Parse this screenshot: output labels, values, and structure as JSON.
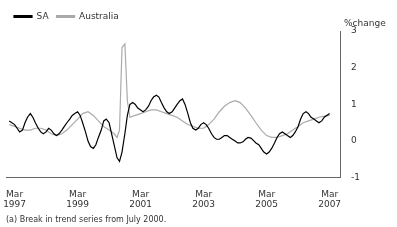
{
  "chart_data": {
    "type": "line",
    "ylabel": "%change",
    "footnote": "(a) Break in trend series from July 2000.",
    "legend": "upper left",
    "grid": false,
    "xlim": [
      1996.92,
      2007.5
    ],
    "xticks": [
      {
        "value": 1997.17,
        "label": "Mar\n1997"
      },
      {
        "value": 1999.17,
        "label": "Mar\n1999"
      },
      {
        "value": 2001.17,
        "label": "Mar\n2001"
      },
      {
        "value": 2003.17,
        "label": "Mar\n2003"
      },
      {
        "value": 2005.17,
        "label": "Mar\n2005"
      },
      {
        "value": 2007.17,
        "label": "Mar\n2007"
      }
    ],
    "ylim": [
      -1,
      3
    ],
    "yticks": [
      -1,
      0,
      1,
      2,
      3
    ],
    "background_color": "#ffffff",
    "series": [
      {
        "name": "SA",
        "color": "#000000",
        "x": [
          1997.0,
          1997.17,
          1997.25,
          1997.33,
          1997.42,
          1997.5,
          1997.58,
          1997.67,
          1997.75,
          1997.83,
          1997.92,
          1998.0,
          1998.08,
          1998.17,
          1998.25,
          1998.33,
          1998.42,
          1998.5,
          1998.58,
          1998.67,
          1998.75,
          1998.83,
          1998.92,
          1999.0,
          1999.08,
          1999.17,
          1999.25,
          1999.33,
          1999.42,
          1999.5,
          1999.58,
          1999.67,
          1999.75,
          1999.83,
          1999.92,
          2000.0,
          2000.08,
          2000.17,
          2000.25,
          2000.33,
          2000.42,
          2000.5,
          2000.58,
          2000.67,
          2000.75,
          2000.83,
          2000.92,
          2001.0,
          2001.08,
          2001.17,
          2001.25,
          2001.33,
          2001.42,
          2001.5,
          2001.58,
          2001.67,
          2001.75,
          2001.83,
          2001.92,
          2002.0,
          2002.08,
          2002.17,
          2002.25,
          2002.33,
          2002.42,
          2002.5,
          2002.58,
          2002.67,
          2002.75,
          2002.83,
          2002.92,
          2003.0,
          2003.08,
          2003.17,
          2003.25,
          2003.33,
          2003.42,
          2003.5,
          2003.58,
          2003.67,
          2003.75,
          2003.83,
          2003.92,
          2004.0,
          2004.08,
          2004.17,
          2004.25,
          2004.33,
          2004.42,
          2004.5,
          2004.58,
          2004.67,
          2004.75,
          2004.83,
          2004.92,
          2005.0,
          2005.08,
          2005.17,
          2005.25,
          2005.33,
          2005.42,
          2005.5,
          2005.58,
          2005.67,
          2005.75,
          2005.83,
          2005.92,
          2006.0,
          2006.08,
          2006.17,
          2006.25,
          2006.33,
          2006.42,
          2006.5,
          2006.58,
          2006.67,
          2006.75,
          2006.83,
          2006.92,
          2007.0,
          2007.17
        ],
        "values": [
          0.55,
          0.45,
          0.35,
          0.25,
          0.3,
          0.5,
          0.65,
          0.75,
          0.65,
          0.5,
          0.35,
          0.25,
          0.2,
          0.25,
          0.35,
          0.3,
          0.2,
          0.15,
          0.2,
          0.3,
          0.4,
          0.5,
          0.6,
          0.7,
          0.75,
          0.8,
          0.7,
          0.5,
          0.25,
          0.0,
          -0.15,
          -0.2,
          -0.1,
          0.1,
          0.3,
          0.55,
          0.6,
          0.5,
          0.2,
          -0.1,
          -0.45,
          -0.55,
          -0.3,
          0.2,
          0.7,
          1.0,
          1.05,
          1.0,
          0.9,
          0.85,
          0.8,
          0.85,
          0.95,
          1.1,
          1.2,
          1.25,
          1.2,
          1.05,
          0.9,
          0.8,
          0.75,
          0.8,
          0.9,
          1.0,
          1.1,
          1.15,
          1.0,
          0.75,
          0.5,
          0.35,
          0.3,
          0.35,
          0.45,
          0.5,
          0.45,
          0.35,
          0.2,
          0.1,
          0.05,
          0.05,
          0.1,
          0.15,
          0.15,
          0.1,
          0.05,
          0.0,
          -0.05,
          -0.05,
          -0.02,
          0.05,
          0.1,
          0.08,
          0.02,
          -0.05,
          -0.1,
          -0.2,
          -0.3,
          -0.35,
          -0.3,
          -0.2,
          -0.05,
          0.1,
          0.2,
          0.25,
          0.2,
          0.15,
          0.1,
          0.15,
          0.25,
          0.4,
          0.6,
          0.75,
          0.8,
          0.75,
          0.65,
          0.6,
          0.55,
          0.5,
          0.55,
          0.65,
          0.75
        ]
      },
      {
        "name": "Australia",
        "color": "#aaaaaa",
        "x": [
          1997.0,
          1997.17,
          1997.33,
          1997.5,
          1997.67,
          1997.83,
          1998.0,
          1998.17,
          1998.33,
          1998.5,
          1998.67,
          1998.83,
          1999.0,
          1999.17,
          1999.33,
          1999.5,
          1999.67,
          1999.83,
          2000.0,
          2000.17,
          2000.33,
          2000.42,
          2000.5,
          2000.58,
          2000.67,
          2000.75,
          2000.83,
          2001.0,
          2001.17,
          2001.33,
          2001.5,
          2001.67,
          2001.83,
          2002.0,
          2002.17,
          2002.33,
          2002.5,
          2002.67,
          2002.83,
          2003.0,
          2003.17,
          2003.33,
          2003.5,
          2003.67,
          2003.83,
          2004.0,
          2004.17,
          2004.33,
          2004.5,
          2004.67,
          2004.83,
          2005.0,
          2005.17,
          2005.33,
          2005.5,
          2005.67,
          2005.83,
          2006.0,
          2006.17,
          2006.33,
          2006.5,
          2006.67,
          2006.83,
          2007.0,
          2007.17
        ],
        "values": [
          0.45,
          0.4,
          0.35,
          0.3,
          0.3,
          0.35,
          0.35,
          0.3,
          0.2,
          0.15,
          0.2,
          0.3,
          0.45,
          0.6,
          0.75,
          0.8,
          0.7,
          0.55,
          0.4,
          0.3,
          0.2,
          0.1,
          0.3,
          2.55,
          2.65,
          1.1,
          0.65,
          0.7,
          0.75,
          0.8,
          0.85,
          0.85,
          0.8,
          0.75,
          0.7,
          0.65,
          0.55,
          0.45,
          0.4,
          0.35,
          0.35,
          0.45,
          0.6,
          0.8,
          0.95,
          1.05,
          1.1,
          1.05,
          0.9,
          0.7,
          0.5,
          0.3,
          0.15,
          0.1,
          0.1,
          0.15,
          0.2,
          0.3,
          0.4,
          0.5,
          0.55,
          0.6,
          0.65,
          0.68,
          0.7
        ]
      }
    ]
  }
}
